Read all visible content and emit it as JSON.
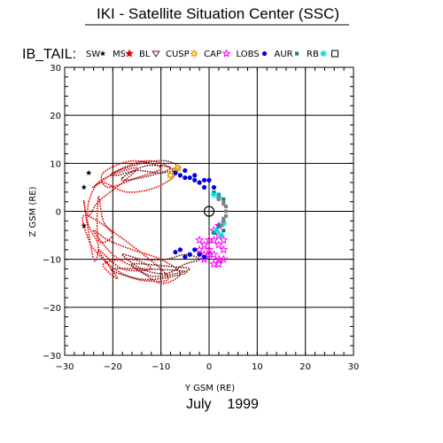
{
  "chart_data": {
    "type": "scatter",
    "title": "IKI - Satellite Situation Center (SSC)",
    "panel_label": "IB_TAIL:",
    "date_label": "July    1999",
    "xlabel": "Y GSM (RE)",
    "ylabel": "Z GSM (RE)",
    "xlim": [
      -30,
      30
    ],
    "ylim": [
      -30,
      30
    ],
    "x_ticks": [
      -30,
      -20,
      -10,
      0,
      10,
      20,
      30
    ],
    "y_ticks": [
      -30,
      -20,
      -10,
      0,
      10,
      20,
      30
    ],
    "grid": true,
    "earth_marker": {
      "x": 0,
      "y": 0
    },
    "legend_entries": [
      {
        "label": "SW",
        "color": "#000000",
        "marker": "star-small"
      },
      {
        "label": "MS",
        "color": "#e00000",
        "marker": "star"
      },
      {
        "label": "BL",
        "color": "#6b1a1a",
        "marker": "triangle-down"
      },
      {
        "label": "CUSP",
        "color": "#e8a000",
        "marker": "sun"
      },
      {
        "label": "CAP",
        "color": "#ff00ff",
        "marker": "star-open"
      },
      {
        "label": "LOBS",
        "color": "#0000e0",
        "marker": "dot"
      },
      {
        "label": "AUR",
        "color": "#008080",
        "marker": "square-small"
      },
      {
        "label": "RB",
        "color": "#00d8d8",
        "marker": "asterisk"
      },
      {
        "label": "",
        "color": "#000000",
        "marker": "square-open"
      }
    ],
    "series": [
      {
        "name": "SW",
        "color": "#000000",
        "points": [
          [
            -26,
            5
          ],
          [
            -26,
            -3
          ],
          [
            -25,
            8
          ]
        ]
      },
      {
        "name": "MS",
        "color": "#e00000",
        "loops": [
          {
            "points": [
              [
                -24,
                5
              ],
              [
                -18,
                9
              ],
              [
                -12,
                10.5
              ],
              [
                -7,
                8
              ],
              [
                -11,
                5
              ],
              [
                -17,
                4
              ],
              [
                -22,
                6
              ]
            ]
          },
          {
            "points": [
              [
                -25,
                2
              ],
              [
                -23,
                6
              ],
              [
                -19,
                8
              ],
              [
                -15,
                9
              ],
              [
                -18,
                6
              ],
              [
                -23,
                2
              ],
              [
                -25,
                -1
              ]
            ]
          },
          {
            "points": [
              [
                -22,
                8
              ],
              [
                -16,
                10.5
              ],
              [
                -10,
                9
              ],
              [
                -15,
                7
              ],
              [
                -21,
                5
              ]
            ]
          },
          {
            "points": [
              [
                -25,
                -1
              ],
              [
                -25,
                -6
              ],
              [
                -22,
                -10
              ],
              [
                -18,
                -13
              ],
              [
                -13,
                -14.5
              ],
              [
                -9,
                -13
              ]
            ]
          },
          {
            "points": [
              [
                -24,
                -4
              ],
              [
                -20,
                -9
              ],
              [
                -15,
                -12
              ],
              [
                -10,
                -15
              ],
              [
                -6,
                -13
              ],
              [
                -10,
                -10
              ],
              [
                -16,
                -8
              ],
              [
                -21,
                -6
              ]
            ]
          },
          {
            "points": [
              [
                -23,
                -8
              ],
              [
                -18,
                -12
              ],
              [
                -12,
                -12
              ],
              [
                -16,
                -10
              ],
              [
                -22,
                -11
              ],
              [
                -19,
                -14
              ]
            ]
          },
          {
            "points": [
              [
                -26,
                2
              ],
              [
                -25,
                -3
              ],
              [
                -23,
                -7
              ],
              [
                -24,
                -10
              ]
            ]
          },
          {
            "points": [
              [
                -23,
                3
              ],
              [
                -22,
                -2
              ],
              [
                -20,
                -5
              ],
              [
                -23,
                -6
              ]
            ]
          }
        ]
      },
      {
        "name": "BL",
        "color": "#6b1a1a",
        "loops": [
          {
            "points": [
              [
                -20,
                8
              ],
              [
                -14,
                10
              ],
              [
                -9,
                10.5
              ],
              [
                -6,
                9
              ],
              [
                -10,
                8
              ],
              [
                -15,
                8.5
              ],
              [
                -19,
                7.5
              ]
            ]
          },
          {
            "points": [
              [
                -18,
                7
              ],
              [
                -13,
                9.5
              ],
              [
                -8,
                9
              ],
              [
                -12,
                7.5
              ],
              [
                -17,
                6.5
              ]
            ]
          },
          {
            "points": [
              [
                -18,
                -9
              ],
              [
                -14,
                -12
              ],
              [
                -9,
                -13
              ],
              [
                -5,
                -11
              ],
              [
                -2,
                -10
              ],
              [
                -5,
                -9
              ],
              [
                -9,
                -10
              ],
              [
                -14,
                -10
              ]
            ]
          },
          {
            "points": [
              [
                -16,
                -11
              ],
              [
                -12,
                -13.5
              ],
              [
                -7,
                -13
              ],
              [
                -4,
                -12
              ],
              [
                -8,
                -11.5
              ]
            ]
          },
          {
            "points": [
              [
                -20,
                -12
              ],
              [
                -15,
                -14
              ],
              [
                -10,
                -14
              ],
              [
                -5,
                -12.5
              ]
            ]
          }
        ]
      },
      {
        "name": "CUSP",
        "color": "#e8a000",
        "points": [
          [
            -7,
            8.5
          ],
          [
            -6.5,
            9
          ],
          [
            -8,
            7.5
          ]
        ]
      },
      {
        "name": "CAP",
        "color": "#ff00ff",
        "points": [
          [
            -2,
            -6
          ],
          [
            -1,
            -7
          ],
          [
            0,
            -8
          ],
          [
            1,
            -9
          ],
          [
            2,
            -7
          ],
          [
            3,
            -6
          ],
          [
            2,
            -5
          ],
          [
            1,
            -6
          ],
          [
            0,
            -9
          ],
          [
            -1,
            -10
          ],
          [
            1,
            -11
          ],
          [
            2,
            -10
          ],
          [
            3,
            -8
          ],
          [
            -2,
            -8
          ],
          [
            0,
            -6
          ],
          [
            1,
            -4
          ],
          [
            2,
            -3
          ],
          [
            -1,
            -9
          ],
          [
            2,
            -11
          ],
          [
            3,
            -10
          ]
        ]
      },
      {
        "name": "LOBS",
        "color": "#0000e0",
        "points": [
          [
            -7,
            8
          ],
          [
            -6,
            7.5
          ],
          [
            -5,
            7
          ],
          [
            -4,
            7
          ],
          [
            -3,
            6.5
          ],
          [
            -2,
            6
          ],
          [
            -1,
            5
          ],
          [
            0,
            6.5
          ],
          [
            1,
            5
          ],
          [
            -5,
            8.5
          ],
          [
            -3,
            7.5
          ],
          [
            -1,
            6.5
          ],
          [
            -6,
            -8
          ],
          [
            -4,
            -9
          ],
          [
            -3,
            -8
          ],
          [
            -2,
            -9
          ],
          [
            -5,
            -9.5
          ],
          [
            -1,
            -9.5
          ],
          [
            -7,
            -8.5
          ]
        ]
      },
      {
        "name": "AUR",
        "color": "#008080",
        "points": [
          [
            1,
            4
          ],
          [
            2,
            3.5
          ],
          [
            3,
            2.5
          ],
          [
            2,
            -3
          ],
          [
            3,
            -4
          ],
          [
            1,
            -4.5
          ]
        ]
      },
      {
        "name": "RB",
        "color": "#00d8d8",
        "points": [
          [
            1,
            3.5
          ],
          [
            2,
            3
          ],
          [
            3,
            -2.5
          ],
          [
            2.5,
            -5
          ],
          [
            1.5,
            -4
          ]
        ]
      },
      {
        "name": "",
        "color": "#808080",
        "points": [
          [
            2,
            3
          ],
          [
            3,
            2
          ],
          [
            3.5,
            1
          ],
          [
            3.5,
            0
          ],
          [
            3.5,
            -1
          ],
          [
            3,
            -2
          ],
          [
            2.5,
            -3
          ],
          [
            2,
            2.5
          ],
          [
            3,
            1.5
          ],
          [
            3,
            -1.5
          ]
        ]
      }
    ]
  }
}
